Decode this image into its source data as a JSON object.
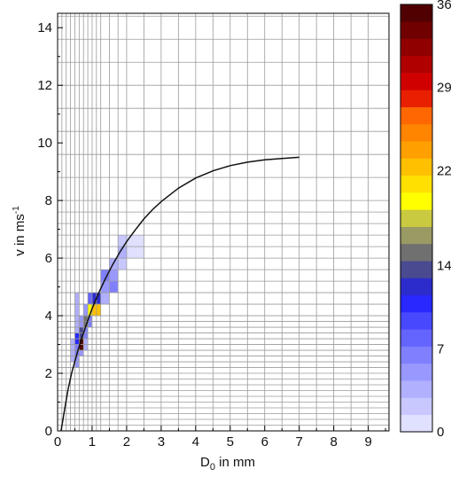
{
  "chart_data": {
    "type": "heatmap",
    "xlabel": "D",
    "xlabel_sub": "0",
    "xlabel_rest": " in mm",
    "ylabel": "v in ms",
    "ylabel_sup": "-1",
    "xlim": [
      0,
      9.6
    ],
    "ylim": [
      0,
      14.5
    ],
    "x_ticks": [
      "0",
      "1",
      "2",
      "3",
      "4",
      "5",
      "6",
      "7",
      "8",
      "9"
    ],
    "y_ticks": [
      "0",
      "2",
      "4",
      "6",
      "8",
      "10",
      "12",
      "14"
    ],
    "x_bin_edges": [
      0,
      0.125,
      0.25,
      0.375,
      0.5,
      0.625,
      0.75,
      0.875,
      1.0,
      1.125,
      1.25,
      1.5,
      1.75,
      2.0,
      2.5,
      3.0,
      3.5,
      4.0,
      4.5,
      5.0,
      5.5,
      6.0,
      6.5,
      7.0,
      7.5,
      8.0,
      8.5,
      9.0
    ],
    "y_bin_edges": [
      0,
      0.2,
      0.4,
      0.6,
      0.8,
      1.0,
      1.2,
      1.4,
      1.6,
      1.8,
      2.0,
      2.2,
      2.4,
      2.6,
      2.8,
      3.0,
      3.2,
      3.4,
      3.6,
      3.8,
      4.0,
      4.4,
      4.8,
      5.2,
      5.6,
      6.0,
      6.4,
      6.8,
      7.2,
      7.6,
      8.0,
      8.8,
      9.6,
      10.4,
      11.2,
      12.0,
      12.8,
      13.6,
      14.4
    ],
    "grid": true,
    "cells": [
      {
        "x0": 0.375,
        "x1": 0.5,
        "y0": 2.4,
        "y1": 2.8,
        "v": 3
      },
      {
        "x0": 0.5,
        "x1": 0.625,
        "y0": 2.2,
        "y1": 2.6,
        "v": 5
      },
      {
        "x0": 0.375,
        "x1": 0.5,
        "y0": 2.8,
        "y1": 3.2,
        "v": 4
      },
      {
        "x0": 0.5,
        "x1": 0.625,
        "y0": 2.6,
        "y1": 3.0,
        "v": 7
      },
      {
        "x0": 0.625,
        "x1": 0.75,
        "y0": 2.6,
        "y1": 3.0,
        "v": 5
      },
      {
        "x0": 0.625,
        "x1": 0.75,
        "y0": 2.8,
        "y1": 3.2,
        "v": 36
      },
      {
        "x0": 0.5,
        "x1": 0.625,
        "y0": 3.0,
        "y1": 3.4,
        "v": 11
      },
      {
        "x0": 0.75,
        "x1": 0.875,
        "y0": 2.8,
        "y1": 3.2,
        "v": 4
      },
      {
        "x0": 0.5,
        "x1": 0.625,
        "y0": 3.4,
        "y1": 3.6,
        "v": 4
      },
      {
        "x0": 0.625,
        "x1": 0.75,
        "y0": 3.2,
        "y1": 3.6,
        "v": 14
      },
      {
        "x0": 0.75,
        "x1": 0.875,
        "y0": 3.2,
        "y1": 3.6,
        "v": 6
      },
      {
        "x0": 0.5,
        "x1": 0.625,
        "y0": 3.6,
        "y1": 4.0,
        "v": 3
      },
      {
        "x0": 0.625,
        "x1": 0.75,
        "y0": 3.6,
        "y1": 4.0,
        "v": 5
      },
      {
        "x0": 0.75,
        "x1": 0.875,
        "y0": 3.6,
        "y1": 4.0,
        "v": 15
      },
      {
        "x0": 0.875,
        "x1": 1.0,
        "y0": 3.6,
        "y1": 4.0,
        "v": 6
      },
      {
        "x0": 0.5,
        "x1": 0.625,
        "y0": 4.0,
        "y1": 4.8,
        "v": 3
      },
      {
        "x0": 0.75,
        "x1": 0.875,
        "y0": 4.0,
        "y1": 4.4,
        "v": 5
      },
      {
        "x0": 0.875,
        "x1": 1.0,
        "y0": 4.0,
        "y1": 4.4,
        "v": 19
      },
      {
        "x0": 0.875,
        "x1": 1.0,
        "y0": 4.4,
        "y1": 4.8,
        "v": 8
      },
      {
        "x0": 1.0,
        "x1": 1.25,
        "y0": 4.0,
        "y1": 4.4,
        "v": 22
      },
      {
        "x0": 1.0,
        "x1": 1.25,
        "y0": 4.4,
        "y1": 4.8,
        "v": 12
      },
      {
        "x0": 1.25,
        "x1": 1.5,
        "y0": 4.4,
        "y1": 4.8,
        "v": 4
      },
      {
        "x0": 1.25,
        "x1": 1.5,
        "y0": 4.8,
        "y1": 5.2,
        "v": 5
      },
      {
        "x0": 1.5,
        "x1": 1.75,
        "y0": 4.8,
        "y1": 5.2,
        "v": 7
      },
      {
        "x0": 1.25,
        "x1": 1.5,
        "y0": 5.2,
        "y1": 5.6,
        "v": 6
      },
      {
        "x0": 1.5,
        "x1": 1.75,
        "y0": 5.2,
        "y1": 5.6,
        "v": 5
      },
      {
        "x0": 1.5,
        "x1": 1.75,
        "y0": 5.6,
        "y1": 6.0,
        "v": 3
      },
      {
        "x0": 1.75,
        "x1": 2.0,
        "y0": 5.6,
        "y1": 6.0,
        "v": 2
      },
      {
        "x0": 1.75,
        "x1": 2.0,
        "y0": 6.0,
        "y1": 6.4,
        "v": 3
      },
      {
        "x0": 2.0,
        "x1": 2.5,
        "y0": 6.0,
        "y1": 6.4,
        "v": 1
      },
      {
        "x0": 1.75,
        "x1": 2.0,
        "y0": 6.4,
        "y1": 6.8,
        "v": 2
      },
      {
        "x0": 2.0,
        "x1": 2.5,
        "y0": 6.4,
        "y1": 6.8,
        "v": 1
      }
    ],
    "curve": {
      "x": [
        0.1,
        0.2,
        0.3,
        0.4,
        0.5,
        0.6,
        0.7,
        0.8,
        0.9,
        1.0,
        1.2,
        1.4,
        1.6,
        1.8,
        2.0,
        2.25,
        2.5,
        2.75,
        3.0,
        3.5,
        4.0,
        4.5,
        5.0,
        5.5,
        6.0,
        6.5,
        7.0
      ],
      "y": [
        0.0,
        0.72,
        1.42,
        1.98,
        2.42,
        2.84,
        3.22,
        3.58,
        3.92,
        4.25,
        4.82,
        5.32,
        5.78,
        6.2,
        6.57,
        6.98,
        7.36,
        7.68,
        7.96,
        8.43,
        8.78,
        9.03,
        9.21,
        9.33,
        9.41,
        9.46,
        9.5
      ]
    },
    "colorbar": {
      "range": [
        0,
        36
      ],
      "tick_labels": [
        "0",
        "7",
        "14",
        "22",
        "29",
        "36"
      ],
      "tick_values": [
        0,
        7,
        14,
        22,
        29,
        36
      ],
      "colors": [
        "#e0e0ff",
        "#c8c8ff",
        "#b0b0ff",
        "#9898ff",
        "#8080ff",
        "#6464ff",
        "#4848ff",
        "#2828ff",
        "#2c2ccc",
        "#4a4a90",
        "#707070",
        "#9a9a64",
        "#caca40",
        "#ffff00",
        "#ffe000",
        "#ffc000",
        "#ffa000",
        "#ff8400",
        "#ff6800",
        "#e82000",
        "#d00000",
        "#b00000",
        "#900000",
        "#700000",
        "#500000"
      ]
    }
  }
}
